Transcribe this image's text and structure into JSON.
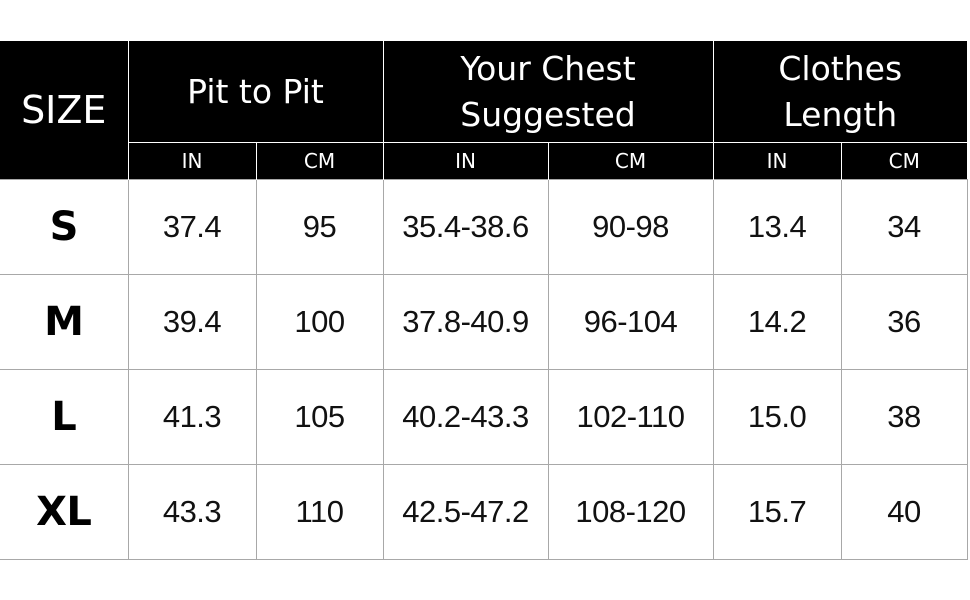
{
  "table": {
    "size_label": "SIZE",
    "groups": [
      {
        "title_lines": [
          "Pit to Pit"
        ],
        "units": [
          "IN",
          "CM"
        ]
      },
      {
        "title_lines": [
          "Your Chest",
          "Suggested"
        ],
        "units": [
          "IN",
          "CM"
        ]
      },
      {
        "title_lines": [
          "Clothes",
          "Length"
        ],
        "units": [
          "IN",
          "CM"
        ]
      }
    ],
    "rows": [
      {
        "size": "S",
        "values": [
          "37.4",
          "95",
          "35.4-38.6",
          "90-98",
          "13.4",
          "34"
        ]
      },
      {
        "size": "M",
        "values": [
          "39.4",
          "100",
          "37.8-40.9",
          "96-104",
          "14.2",
          "36"
        ]
      },
      {
        "size": "L",
        "values": [
          "41.3",
          "105",
          "40.2-43.3",
          "102-110",
          "15.0",
          "38"
        ]
      },
      {
        "size": "XL",
        "values": [
          "43.3",
          "110",
          "42.5-47.2",
          "108-120",
          "15.7",
          "40"
        ]
      }
    ]
  },
  "colors": {
    "header_bg": "#000000",
    "header_text": "#ffffff",
    "grid_line": "#a8a8a8"
  }
}
